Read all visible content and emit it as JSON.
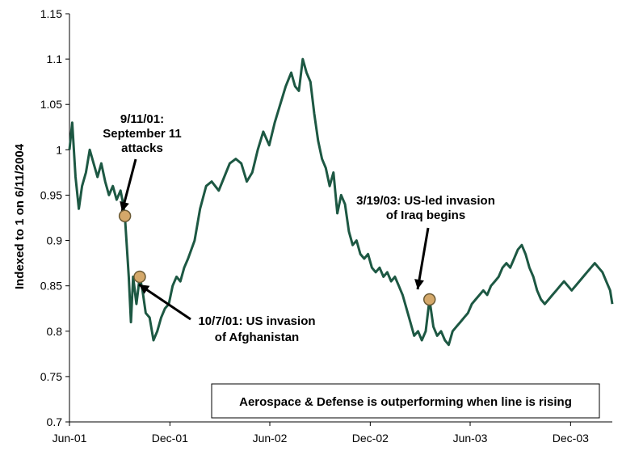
{
  "chart_data": {
    "type": "line",
    "title": "",
    "xlabel": "",
    "ylabel": "Indexed to 1 on 6/11/2004",
    "ylim": [
      0.7,
      1.15
    ],
    "yticks": [
      "0.7",
      "0.75",
      "0.8",
      "0.85",
      "0.9",
      "0.95",
      "1",
      "1.05",
      "1.1",
      "1.15"
    ],
    "xticks": [
      "Jun-01",
      "Dec-01",
      "Jun-02",
      "Dec-02",
      "Jun-03",
      "Dec-03"
    ],
    "xlim": [
      "2001-06-01",
      "2004-02-15"
    ],
    "grid": false,
    "legend": "none",
    "series": [
      {
        "color": "#1d5843",
        "x": [
          "2001-06-01",
          "2001-06-06",
          "2001-06-12",
          "2001-06-18",
          "2001-06-24",
          "2001-07-01",
          "2001-07-08",
          "2001-07-15",
          "2001-07-22",
          "2001-07-29",
          "2001-08-05",
          "2001-08-12",
          "2001-08-19",
          "2001-08-26",
          "2001-09-02",
          "2001-09-07",
          "2001-09-10",
          "2001-09-17",
          "2001-09-21",
          "2001-09-25",
          "2001-10-01",
          "2001-10-07",
          "2001-10-12",
          "2001-10-18",
          "2001-10-25",
          "2001-11-01",
          "2001-11-08",
          "2001-11-15",
          "2001-11-22",
          "2001-11-29",
          "2001-12-06",
          "2001-12-13",
          "2001-12-20",
          "2001-12-27",
          "2002-01-03",
          "2002-01-15",
          "2002-01-25",
          "2002-02-05",
          "2002-02-15",
          "2002-02-28",
          "2002-03-10",
          "2002-03-20",
          "2002-03-31",
          "2002-04-10",
          "2002-04-20",
          "2002-04-30",
          "2002-05-10",
          "2002-05-20",
          "2002-05-31",
          "2002-06-10",
          "2002-06-20",
          "2002-06-30",
          "2002-07-10",
          "2002-07-17",
          "2002-07-24",
          "2002-07-31",
          "2002-08-07",
          "2002-08-14",
          "2002-08-21",
          "2002-08-28",
          "2002-09-04",
          "2002-09-11",
          "2002-09-18",
          "2002-09-25",
          "2002-10-02",
          "2002-10-09",
          "2002-10-16",
          "2002-10-23",
          "2002-10-30",
          "2002-11-06",
          "2002-11-13",
          "2002-11-20",
          "2002-11-27",
          "2002-12-04",
          "2002-12-11",
          "2002-12-18",
          "2002-12-25",
          "2003-01-01",
          "2003-01-08",
          "2003-01-15",
          "2003-01-22",
          "2003-01-29",
          "2003-02-05",
          "2003-02-12",
          "2003-02-19",
          "2003-02-26",
          "2003-03-05",
          "2003-03-12",
          "2003-03-19",
          "2003-03-26",
          "2003-04-02",
          "2003-04-09",
          "2003-04-16",
          "2003-04-23",
          "2003-04-30",
          "2003-05-07",
          "2003-05-14",
          "2003-05-21",
          "2003-05-28",
          "2003-06-04",
          "2003-06-11",
          "2003-06-18",
          "2003-06-25",
          "2003-07-02",
          "2003-07-09",
          "2003-07-16",
          "2003-07-23",
          "2003-07-30",
          "2003-08-06",
          "2003-08-13",
          "2003-08-20",
          "2003-08-27",
          "2003-09-03",
          "2003-09-10",
          "2003-09-17",
          "2003-09-24",
          "2003-10-01",
          "2003-10-08",
          "2003-10-15",
          "2003-10-22",
          "2003-10-29",
          "2003-11-05",
          "2003-11-12",
          "2003-11-19",
          "2003-11-26",
          "2003-12-03",
          "2003-12-10",
          "2003-12-17",
          "2003-12-24",
          "2003-12-31",
          "2004-01-07",
          "2004-01-14",
          "2004-01-21",
          "2004-01-28",
          "2004-02-04",
          "2004-02-11",
          "2004-02-15"
        ],
        "y": [
          1.0,
          1.03,
          0.97,
          0.935,
          0.96,
          0.975,
          1.0,
          0.985,
          0.97,
          0.985,
          0.965,
          0.95,
          0.96,
          0.945,
          0.955,
          0.94,
          0.927,
          0.86,
          0.81,
          0.86,
          0.83,
          0.86,
          0.845,
          0.82,
          0.815,
          0.79,
          0.8,
          0.815,
          0.825,
          0.83,
          0.85,
          0.86,
          0.855,
          0.87,
          0.88,
          0.9,
          0.935,
          0.96,
          0.965,
          0.955,
          0.97,
          0.985,
          0.99,
          0.985,
          0.965,
          0.975,
          1.0,
          1.02,
          1.005,
          1.03,
          1.05,
          1.07,
          1.085,
          1.07,
          1.065,
          1.1,
          1.085,
          1.075,
          1.04,
          1.01,
          0.99,
          0.98,
          0.96,
          0.975,
          0.93,
          0.95,
          0.94,
          0.91,
          0.895,
          0.9,
          0.885,
          0.88,
          0.885,
          0.87,
          0.865,
          0.87,
          0.86,
          0.865,
          0.855,
          0.86,
          0.85,
          0.84,
          0.825,
          0.81,
          0.795,
          0.8,
          0.79,
          0.8,
          0.835,
          0.805,
          0.795,
          0.8,
          0.79,
          0.785,
          0.8,
          0.805,
          0.81,
          0.815,
          0.82,
          0.83,
          0.835,
          0.84,
          0.845,
          0.84,
          0.85,
          0.855,
          0.86,
          0.87,
          0.875,
          0.87,
          0.88,
          0.89,
          0.895,
          0.885,
          0.87,
          0.86,
          0.845,
          0.835,
          0.83,
          0.835,
          0.84,
          0.845,
          0.85,
          0.855,
          0.85,
          0.845,
          0.85,
          0.855,
          0.86,
          0.865,
          0.87,
          0.875,
          0.87,
          0.865,
          0.855,
          0.845,
          0.83
        ]
      }
    ],
    "points": [
      {
        "x": "2001-09-10",
        "y": 0.927
      },
      {
        "x": "2001-10-07",
        "y": 0.86
      },
      {
        "x": "2003-03-19",
        "y": 0.835
      }
    ],
    "annotations": [
      {
        "lines": [
          "9/11/01:",
          "September 11",
          "attacks"
        ]
      },
      {
        "lines": [
          "10/7/01: US invasion",
          "of Afghanistan"
        ]
      },
      {
        "lines": [
          "3/19/03: US-led invasion",
          "of Iraq begins"
        ]
      }
    ],
    "note": "Aerospace & Defense is outperforming when line is rising",
    "colors": {
      "line": "#1d5843",
      "marker_fill": "#d4a86a",
      "marker_stroke": "#6b5a35"
    }
  }
}
